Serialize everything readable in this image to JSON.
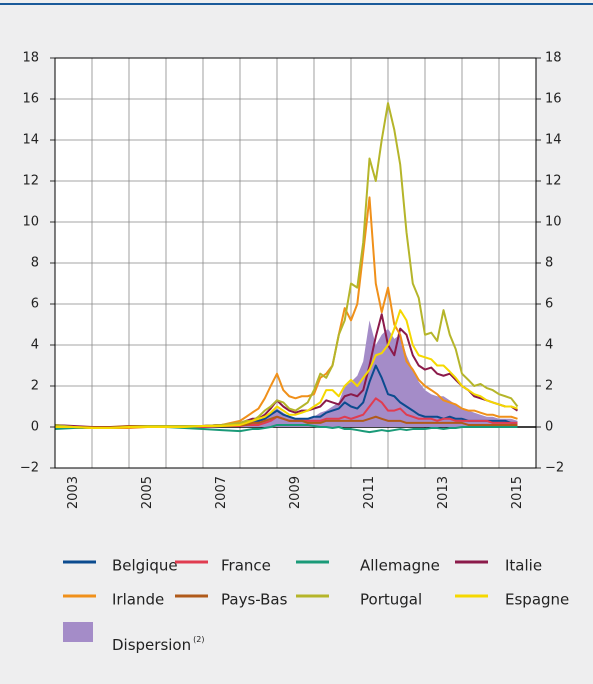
{
  "chart_data": {
    "type": "line",
    "x": [
      2003,
      2003.5,
      2004,
      2004.5,
      2005,
      2005.5,
      2006,
      2006.5,
      2007,
      2007.5,
      2008,
      2008.17,
      2008.33,
      2008.5,
      2008.67,
      2008.83,
      2009,
      2009.17,
      2009.33,
      2009.5,
      2009.67,
      2009.83,
      2010,
      2010.17,
      2010.33,
      2010.5,
      2010.67,
      2010.83,
      2011,
      2011.17,
      2011.33,
      2011.5,
      2011.67,
      2011.83,
      2012,
      2012.17,
      2012.33,
      2012.5,
      2012.67,
      2012.83,
      2013,
      2013.17,
      2013.33,
      2013.5,
      2013.67,
      2013.83,
      2014,
      2014.17,
      2014.33,
      2014.5,
      2014.67,
      2014.83,
      2015,
      2015.17,
      2015.33,
      2015.5
    ],
    "area": {
      "name": "Dispersion",
      "name_note": "(2)",
      "color": "#a48cc8",
      "values": [
        0.05,
        0.05,
        0.05,
        0.05,
        0.05,
        0.05,
        0.05,
        0.05,
        0.05,
        0.05,
        0.1,
        0.1,
        0.2,
        0.3,
        0.5,
        0.7,
        0.9,
        0.7,
        0.5,
        0.4,
        0.4,
        0.4,
        0.5,
        0.7,
        0.8,
        1.0,
        1.2,
        2.0,
        2.2,
        2.5,
        3.2,
        5.2,
        4.0,
        4.5,
        4.8,
        4.3,
        4.5,
        3.5,
        2.8,
        2.2,
        1.8,
        1.6,
        1.5,
        1.5,
        1.3,
        1.1,
        0.9,
        0.8,
        0.7,
        0.6,
        0.5,
        0.5,
        0.4,
        0.4,
        0.4,
        0.3
      ]
    },
    "series": [
      {
        "name": "Belgique",
        "color": "#0b4b8f",
        "values": [
          0,
          0,
          -0.05,
          -0.05,
          0,
          0,
          0,
          0,
          0.05,
          0.1,
          0.1,
          0.2,
          0.3,
          0.3,
          0.4,
          0.6,
          0.8,
          0.6,
          0.5,
          0.4,
          0.4,
          0.4,
          0.5,
          0.5,
          0.7,
          0.8,
          0.9,
          1.2,
          1.0,
          0.9,
          1.2,
          2.2,
          3.0,
          2.4,
          1.6,
          1.5,
          1.2,
          1.0,
          0.8,
          0.6,
          0.5,
          0.5,
          0.5,
          0.4,
          0.5,
          0.4,
          0.4,
          0.3,
          0.3,
          0.3,
          0.3,
          0.3,
          0.3,
          0.3,
          0.2,
          0.2
        ]
      },
      {
        "name": "France",
        "color": "#e03c50",
        "values": [
          0,
          0,
          0,
          0,
          0,
          0,
          0,
          0,
          0,
          0.05,
          0.05,
          0.1,
          0.1,
          0.1,
          0.2,
          0.3,
          0.5,
          0.4,
          0.3,
          0.3,
          0.3,
          0.3,
          0.3,
          0.3,
          0.4,
          0.4,
          0.4,
          0.5,
          0.4,
          0.5,
          0.6,
          1.0,
          1.4,
          1.2,
          0.8,
          0.8,
          0.9,
          0.6,
          0.5,
          0.4,
          0.4,
          0.4,
          0.3,
          0.4,
          0.4,
          0.3,
          0.3,
          0.3,
          0.3,
          0.3,
          0.3,
          0.2,
          0.2,
          0.2,
          0.2,
          0.2
        ]
      },
      {
        "name": "Allemagne",
        "color": "#1a9a78",
        "values": [
          -0.1,
          -0.05,
          -0.05,
          -0.05,
          0,
          0,
          0,
          -0.05,
          -0.1,
          -0.15,
          -0.2,
          -0.15,
          -0.1,
          -0.1,
          -0.05,
          0,
          0.1,
          0.1,
          0.1,
          0.1,
          0.1,
          0.1,
          0.05,
          0,
          0,
          -0.05,
          0,
          -0.1,
          -0.1,
          -0.15,
          -0.2,
          -0.25,
          -0.2,
          -0.15,
          -0.2,
          -0.15,
          -0.1,
          -0.15,
          -0.1,
          -0.1,
          -0.1,
          -0.05,
          -0.05,
          -0.1,
          -0.05,
          -0.05,
          0,
          0,
          0,
          0,
          0,
          0,
          0,
          0,
          0,
          0
        ]
      },
      {
        "name": "Italie",
        "color": "#8b1a4a",
        "values": [
          0.1,
          0.05,
          0,
          0,
          0,
          0,
          0,
          0.05,
          0.05,
          0.1,
          0.2,
          0.3,
          0.4,
          0.4,
          0.6,
          0.9,
          1.3,
          1.0,
          0.8,
          0.7,
          0.8,
          0.8,
          0.9,
          1.0,
          1.3,
          1.2,
          1.1,
          1.5,
          1.6,
          1.5,
          1.8,
          3.0,
          4.4,
          5.5,
          4.0,
          3.5,
          4.8,
          4.5,
          3.5,
          3.0,
          2.8,
          2.9,
          2.6,
          2.5,
          2.6,
          2.3,
          2.0,
          1.8,
          1.5,
          1.4,
          1.3,
          1.2,
          1.1,
          1.0,
          1.0,
          0.8
        ]
      },
      {
        "name": "Irlande",
        "color": "#f0901a",
        "values": [
          0.05,
          0,
          -0.05,
          -0.05,
          -0.05,
          0,
          0,
          0.05,
          0.05,
          0.1,
          0.3,
          0.5,
          0.7,
          0.9,
          1.4,
          2.0,
          2.6,
          1.8,
          1.5,
          1.4,
          1.5,
          1.5,
          1.6,
          2.4,
          2.6,
          3.0,
          4.5,
          5.8,
          5.2,
          6.0,
          8.5,
          11.2,
          7.0,
          5.6,
          6.8,
          5.0,
          4.5,
          3.2,
          2.8,
          2.3,
          2.0,
          1.8,
          1.6,
          1.3,
          1.2,
          1.1,
          0.9,
          0.8,
          0.8,
          0.7,
          0.6,
          0.6,
          0.5,
          0.5,
          0.5,
          0.4
        ]
      },
      {
        "name": "Pays-Bas",
        "color": "#b05a1a",
        "values": [
          0,
          0,
          0,
          0,
          0.05,
          0.05,
          0.05,
          0.05,
          0.05,
          0.1,
          0.1,
          0.1,
          0.2,
          0.2,
          0.3,
          0.4,
          0.5,
          0.4,
          0.3,
          0.3,
          0.3,
          0.2,
          0.2,
          0.2,
          0.3,
          0.3,
          0.3,
          0.3,
          0.3,
          0.3,
          0.3,
          0.4,
          0.5,
          0.4,
          0.3,
          0.3,
          0.3,
          0.2,
          0.2,
          0.2,
          0.2,
          0.2,
          0.2,
          0.2,
          0.2,
          0.2,
          0.2,
          0.1,
          0.1,
          0.1,
          0.1,
          0.1,
          0.1,
          0.1,
          0.1,
          0.1
        ]
      },
      {
        "name": "Portugal",
        "color": "#b5b52a",
        "values": [
          0.1,
          0,
          -0.05,
          -0.05,
          0,
          0.05,
          0.05,
          0.05,
          0.05,
          0.1,
          0.2,
          0.3,
          0.3,
          0.5,
          0.8,
          1.0,
          1.3,
          1.2,
          0.9,
          0.8,
          1.0,
          1.2,
          1.8,
          2.6,
          2.4,
          3.0,
          4.5,
          5.2,
          7.0,
          6.8,
          9.0,
          13.1,
          12.0,
          14.0,
          15.8,
          14.5,
          12.8,
          9.5,
          7.0,
          6.3,
          4.5,
          4.6,
          4.2,
          5.7,
          4.5,
          3.8,
          2.6,
          2.3,
          2.0,
          2.1,
          1.9,
          1.8,
          1.6,
          1.5,
          1.4,
          1.0
        ]
      },
      {
        "name": "Espagne",
        "color": "#f5d800",
        "values": [
          0,
          0,
          -0.05,
          -0.05,
          0,
          0,
          0,
          0,
          0.05,
          0.05,
          0.1,
          0.2,
          0.3,
          0.4,
          0.5,
          0.7,
          1.0,
          0.8,
          0.6,
          0.6,
          0.7,
          0.8,
          1.0,
          1.2,
          1.8,
          1.8,
          1.5,
          2.0,
          2.3,
          2.0,
          2.4,
          2.8,
          3.5,
          3.6,
          4.0,
          4.8,
          5.7,
          5.2,
          4.0,
          3.5,
          3.4,
          3.3,
          3.0,
          3.0,
          2.7,
          2.4,
          2.0,
          1.8,
          1.6,
          1.5,
          1.3,
          1.2,
          1.1,
          1.0,
          1.0,
          0.9
        ]
      }
    ],
    "xlim": [
      2003,
      2016
    ],
    "xticks": [
      {
        "value": 2003.5,
        "label": "2003"
      },
      {
        "value": 2005.5,
        "label": "2005"
      },
      {
        "value": 2007.5,
        "label": "2007"
      },
      {
        "value": 2009.5,
        "label": "2009"
      },
      {
        "value": 2011.5,
        "label": "2011"
      },
      {
        "value": 2013.5,
        "label": "2013"
      },
      {
        "value": 2015.5,
        "label": "2015"
      }
    ],
    "xgrid": [
      2004,
      2005,
      2006,
      2007,
      2008,
      2009,
      2010,
      2011,
      2012,
      2013,
      2014,
      2015
    ],
    "ylim": [
      -2,
      18
    ],
    "yticks": [
      {
        "value": -2,
        "label": "−2"
      },
      0,
      2,
      4,
      6,
      8,
      10,
      12,
      14,
      16,
      18
    ],
    "y2lim": [
      -2,
      18
    ],
    "y2ticks": [
      {
        "value": -2,
        "label": "−2"
      },
      0,
      2,
      4,
      6,
      8,
      10,
      12,
      14,
      16,
      18
    ],
    "grid": true
  }
}
